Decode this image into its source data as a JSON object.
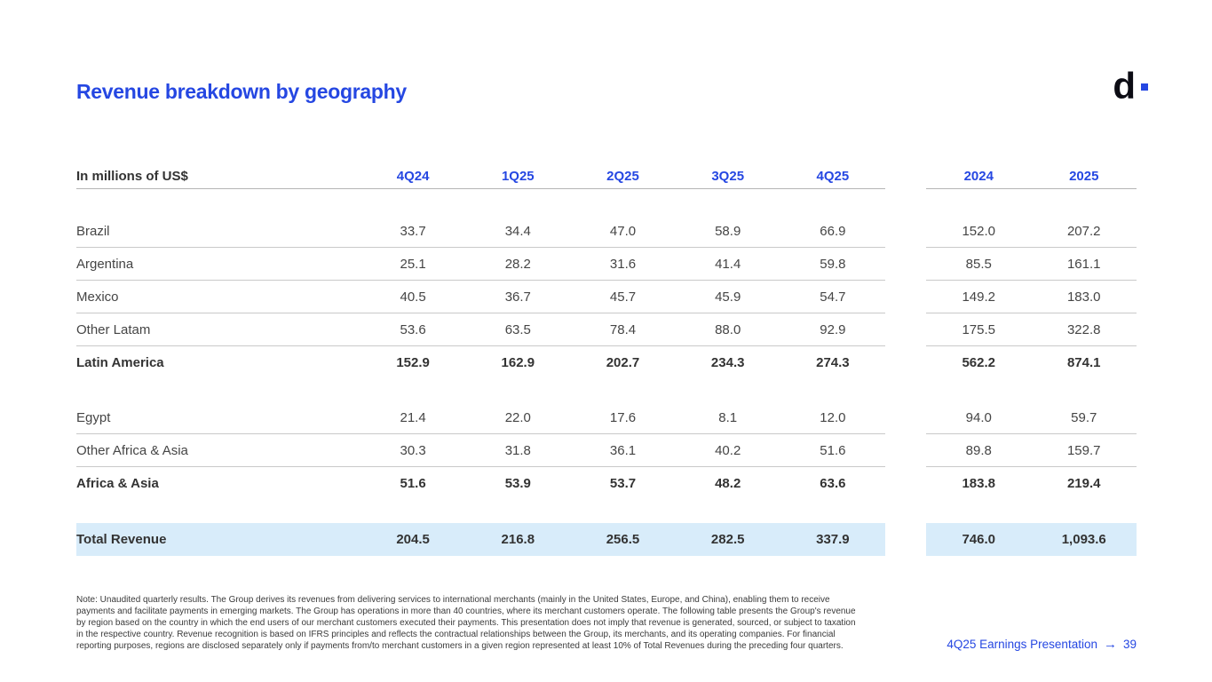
{
  "page": {
    "title": "Revenue breakdown by geography",
    "logo_letter": "d"
  },
  "colors": {
    "accent_blue": "#2547e2",
    "highlight_row_blue": "#d8ecfa",
    "logo_black": "#0c0c14"
  },
  "table": {
    "unit_label": "In millions of US$",
    "quarter_columns": [
      "4Q24",
      "1Q25",
      "2Q25",
      "3Q25",
      "4Q25"
    ],
    "year_columns": [
      "2024",
      "2025"
    ],
    "rows": [
      {
        "label": "Brazil",
        "values": [
          "33.7",
          "34.4",
          "47.0",
          "58.9",
          "66.9"
        ],
        "years": [
          "152.0",
          "207.2"
        ]
      },
      {
        "label": "Argentina",
        "values": [
          "25.1",
          "28.2",
          "31.6",
          "41.4",
          "59.8"
        ],
        "years": [
          "85.5",
          "161.1"
        ]
      },
      {
        "label": "Mexico",
        "values": [
          "40.5",
          "36.7",
          "45.7",
          "45.9",
          "54.7"
        ],
        "years": [
          "149.2",
          "183.0"
        ]
      },
      {
        "label": "Other Latam",
        "values": [
          "53.6",
          "63.5",
          "78.4",
          "88.0",
          "92.9"
        ],
        "years": [
          "175.5",
          "322.8"
        ]
      },
      {
        "label": "Latin America",
        "values": [
          "152.9",
          "162.9",
          "202.7",
          "234.3",
          "274.3"
        ],
        "years": [
          "562.2",
          "874.1"
        ]
      },
      {
        "label": "Egypt",
        "values": [
          "21.4",
          "22.0",
          "17.6",
          "8.1",
          "12.0"
        ],
        "years": [
          "94.0",
          "59.7"
        ]
      },
      {
        "label": "Other Africa & Asia",
        "values": [
          "30.3",
          "31.8",
          "36.1",
          "40.2",
          "51.6"
        ],
        "years": [
          "89.8",
          "159.7"
        ]
      },
      {
        "label": "Africa & Asia",
        "values": [
          "51.6",
          "53.9",
          "53.7",
          "48.2",
          "63.6"
        ],
        "years": [
          "183.8",
          "219.4"
        ]
      }
    ],
    "total_row": {
      "label": "Total Revenue",
      "values": [
        "204.5",
        "216.8",
        "256.5",
        "282.5",
        "337.9"
      ],
      "years": [
        "746.0",
        "1,093.6"
      ]
    }
  },
  "footer": {
    "note": "Note: Unaudited quarterly results. The Group derives its revenues from delivering services to international merchants (mainly in the United States, Europe, and China), enabling them to receive payments and facilitate payments in emerging markets. The Group has operations in more than 40 countries, where its merchant customers operate. The following table presents the Group's revenue by region based on the country in which the end users of our merchant customers executed their payments. This presentation does not imply that revenue is generated, sourced, or subject to taxation in the respective country. Revenue recognition is based on IFRS principles and reflects the contractual relationships between the Group, its merchants, and its operating companies. For financial reporting purposes, regions are disclosed separately only if payments from/to merchant customers in a given region represented at least 10% of Total Revenues during the preceding four quarters.",
    "pagination_label": "4Q25 Earnings Presentation",
    "pagination_arrow": "→",
    "page_number": "39"
  }
}
